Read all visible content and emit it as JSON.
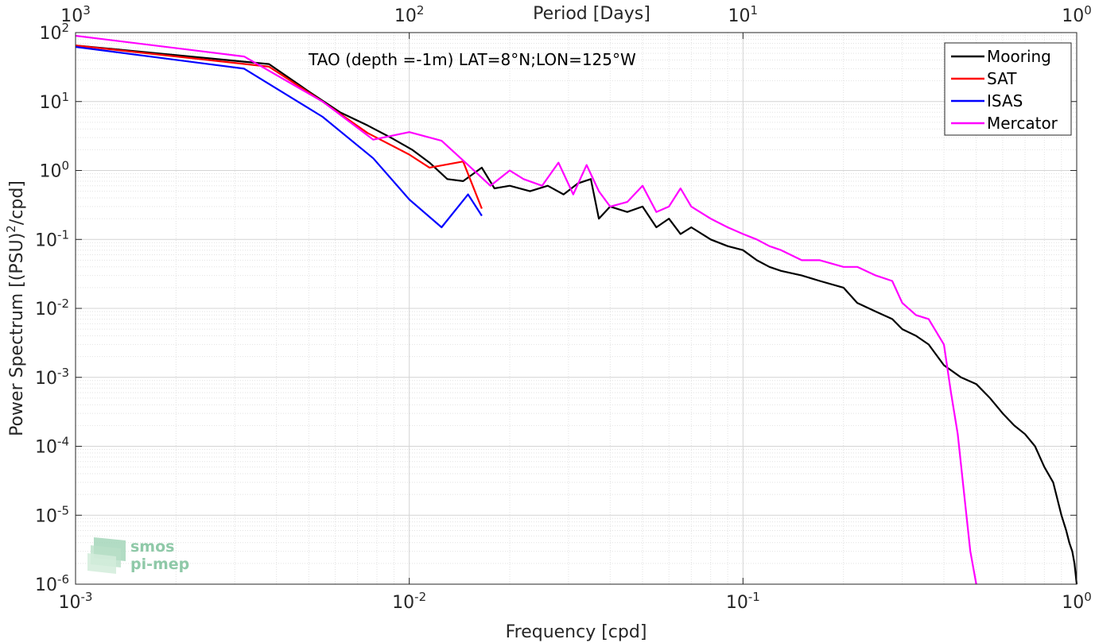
{
  "chart_data": {
    "type": "line",
    "title": "",
    "annotation": "TAO (depth =-1m) LAT=8°N;LON=125°W",
    "xlabel": "Frequency [cpd]",
    "ylabel": "Power Spectrum [(PSU)",
    "ylabel_sup": "2",
    "ylabel_tail": "/cpd]",
    "top_xlabel": "Period [Days]",
    "xscale": "log",
    "yscale": "log",
    "xlim": [
      0.001,
      1
    ],
    "ylim": [
      1e-06,
      100
    ],
    "grid": true,
    "legend_position": "top-right",
    "x_ticks": [
      {
        "value": 0.001,
        "base": "10",
        "exp": "-3"
      },
      {
        "value": 0.01,
        "base": "10",
        "exp": "-2"
      },
      {
        "value": 0.1,
        "base": "10",
        "exp": "-1"
      },
      {
        "value": 1,
        "base": "10",
        "exp": "0"
      }
    ],
    "top_ticks": [
      {
        "value": 0.001,
        "base": "10",
        "exp": "3"
      },
      {
        "value": 0.01,
        "base": "10",
        "exp": "2"
      },
      {
        "value": 0.1,
        "base": "10",
        "exp": "1"
      },
      {
        "value": 1,
        "base": "10",
        "exp": "0"
      }
    ],
    "y_ticks": [
      {
        "value": 100,
        "base": "10",
        "exp": "2"
      },
      {
        "value": 10,
        "base": "10",
        "exp": "1"
      },
      {
        "value": 1,
        "base": "10",
        "exp": "0"
      },
      {
        "value": 0.1,
        "base": "10",
        "exp": "-1"
      },
      {
        "value": 0.01,
        "base": "10",
        "exp": "-2"
      },
      {
        "value": 0.001,
        "base": "10",
        "exp": "-3"
      },
      {
        "value": 0.0001,
        "base": "10",
        "exp": "-4"
      },
      {
        "value": 1e-05,
        "base": "10",
        "exp": "-5"
      },
      {
        "value": 1e-06,
        "base": "10",
        "exp": "-6"
      }
    ],
    "series": [
      {
        "name": "Mooring",
        "color": "#000000",
        "x": [
          0.001,
          0.0038,
          0.005,
          0.0062,
          0.0075,
          0.0088,
          0.0102,
          0.0115,
          0.013,
          0.0145,
          0.0165,
          0.018,
          0.02,
          0.023,
          0.026,
          0.029,
          0.032,
          0.035,
          0.037,
          0.04,
          0.045,
          0.05,
          0.055,
          0.06,
          0.065,
          0.07,
          0.08,
          0.09,
          0.1,
          0.11,
          0.12,
          0.13,
          0.15,
          0.17,
          0.2,
          0.22,
          0.25,
          0.28,
          0.3,
          0.33,
          0.36,
          0.4,
          0.45,
          0.5,
          0.55,
          0.6,
          0.65,
          0.7,
          0.75,
          0.8,
          0.85,
          0.9,
          0.93,
          0.95,
          0.97,
          0.985,
          1.0
        ],
        "y": [
          65,
          35,
          14,
          7,
          4.5,
          3,
          2,
          1.3,
          0.75,
          0.7,
          1.1,
          0.55,
          0.6,
          0.5,
          0.6,
          0.45,
          0.65,
          0.75,
          0.2,
          0.3,
          0.25,
          0.3,
          0.15,
          0.2,
          0.12,
          0.15,
          0.1,
          0.08,
          0.07,
          0.05,
          0.04,
          0.035,
          0.03,
          0.025,
          0.02,
          0.012,
          0.009,
          0.007,
          0.005,
          0.004,
          0.003,
          0.0015,
          0.001,
          0.0008,
          0.0005,
          0.0003,
          0.0002,
          0.00015,
          0.0001,
          5e-05,
          3e-05,
          1e-05,
          6e-06,
          4e-06,
          3e-06,
          2e-06,
          1e-06
        ]
      },
      {
        "name": "SAT",
        "color": "#ff0000",
        "x": [
          0.001,
          0.0038,
          0.0055,
          0.0075,
          0.01,
          0.0115,
          0.0145,
          0.0165
        ],
        "y": [
          65,
          32,
          10,
          3.5,
          1.7,
          1.1,
          1.35,
          0.28
        ]
      },
      {
        "name": "ISAS",
        "color": "#0000ff",
        "x": [
          0.001,
          0.0032,
          0.0055,
          0.0078,
          0.01,
          0.0125,
          0.015,
          0.0165
        ],
        "y": [
          62,
          30,
          6,
          1.5,
          0.38,
          0.15,
          0.45,
          0.22
        ]
      },
      {
        "name": "Mercator",
        "color": "#ff00ff",
        "x": [
          0.001,
          0.0032,
          0.0055,
          0.0078,
          0.01,
          0.0125,
          0.015,
          0.0175,
          0.02,
          0.022,
          0.025,
          0.028,
          0.031,
          0.034,
          0.037,
          0.04,
          0.045,
          0.05,
          0.055,
          0.06,
          0.065,
          0.07,
          0.08,
          0.09,
          0.1,
          0.11,
          0.12,
          0.13,
          0.15,
          0.17,
          0.2,
          0.22,
          0.25,
          0.28,
          0.3,
          0.33,
          0.36,
          0.4,
          0.42,
          0.44,
          0.46,
          0.48,
          0.5
        ],
        "y": [
          90,
          45,
          10,
          2.8,
          3.6,
          2.7,
          1.2,
          0.6,
          1.0,
          0.75,
          0.6,
          1.3,
          0.45,
          1.2,
          0.5,
          0.3,
          0.35,
          0.6,
          0.25,
          0.3,
          0.55,
          0.3,
          0.2,
          0.15,
          0.12,
          0.1,
          0.08,
          0.07,
          0.05,
          0.05,
          0.04,
          0.04,
          0.03,
          0.025,
          0.012,
          0.008,
          0.007,
          0.003,
          0.0006,
          0.00015,
          2e-05,
          3e-06,
          1e-06
        ]
      }
    ]
  },
  "logo": {
    "line1": "smos",
    "line2": "pi-mep"
  }
}
